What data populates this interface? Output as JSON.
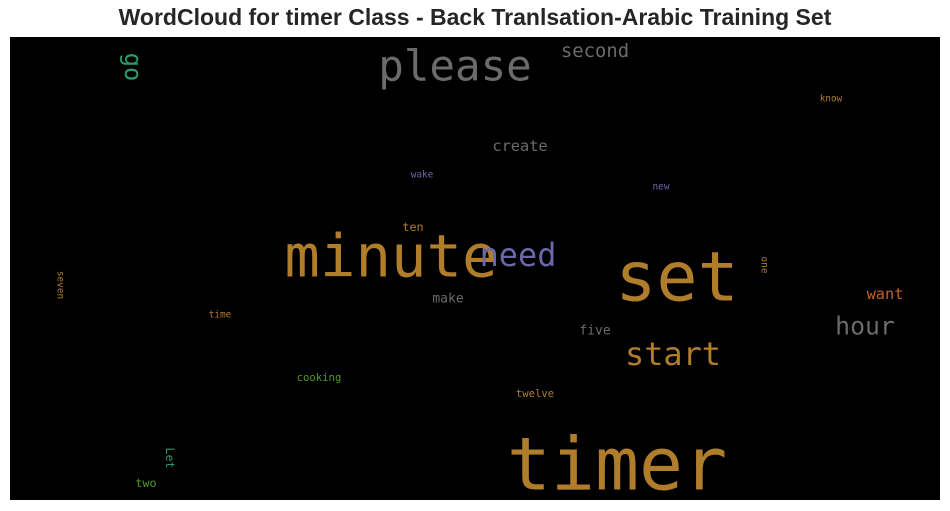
{
  "chart_data": {
    "type": "wordcloud",
    "title": "WordCloud for timer Class - Back Tranlsation-Arabic Training Set",
    "background": "#000000",
    "words": [
      {
        "text": "timer",
        "color": "#b07d2b",
        "weight": 62,
        "vertical": false
      },
      {
        "text": "set",
        "color": "#b07d2b",
        "weight": 58,
        "vertical": false
      },
      {
        "text": "minute",
        "color": "#b07d2b",
        "weight": 50,
        "vertical": false
      },
      {
        "text": "please",
        "color": "#6b6b6b",
        "weight": 36,
        "vertical": false
      },
      {
        "text": "start",
        "color": "#b07d2b",
        "weight": 27,
        "vertical": false
      },
      {
        "text": "need",
        "color": "#6a68a8",
        "weight": 27,
        "vertical": false
      },
      {
        "text": "hour",
        "color": "#6b6b6b",
        "weight": 21,
        "vertical": false
      },
      {
        "text": "go",
        "color": "#2f9a6a",
        "weight": 20,
        "vertical": true
      },
      {
        "text": "second",
        "color": "#6b6b6b",
        "weight": 16,
        "vertical": false
      },
      {
        "text": "want",
        "color": "#c8611f",
        "weight": 13,
        "vertical": false
      },
      {
        "text": "create",
        "color": "#6b6b6b",
        "weight": 13,
        "vertical": false
      },
      {
        "text": "make",
        "color": "#6b6b6b",
        "weight": 11,
        "vertical": false
      },
      {
        "text": "five",
        "color": "#6b6b6b",
        "weight": 11,
        "vertical": false
      },
      {
        "text": "Let",
        "color": "#2f9a6a",
        "weight": 10,
        "vertical": true
      },
      {
        "text": "ten",
        "color": "#b07d2b",
        "weight": 10,
        "vertical": false
      },
      {
        "text": "two",
        "color": "#4f9a2a",
        "weight": 10,
        "vertical": false
      },
      {
        "text": "cooking",
        "color": "#4f9a2a",
        "weight": 9,
        "vertical": false
      },
      {
        "text": "twelve",
        "color": "#b07d2b",
        "weight": 9,
        "vertical": false
      },
      {
        "text": "time",
        "color": "#b07d2b",
        "weight": 8,
        "vertical": false
      },
      {
        "text": "seven",
        "color": "#b07d2b",
        "weight": 8,
        "vertical": true
      },
      {
        "text": "wake",
        "color": "#6a68a8",
        "weight": 8,
        "vertical": false
      },
      {
        "text": "new",
        "color": "#6a68a8",
        "weight": 8,
        "vertical": false
      },
      {
        "text": "know",
        "color": "#b07d2b",
        "weight": 8,
        "vertical": false
      },
      {
        "text": "one",
        "color": "#b07d2b",
        "weight": 8,
        "vertical": true
      }
    ]
  }
}
